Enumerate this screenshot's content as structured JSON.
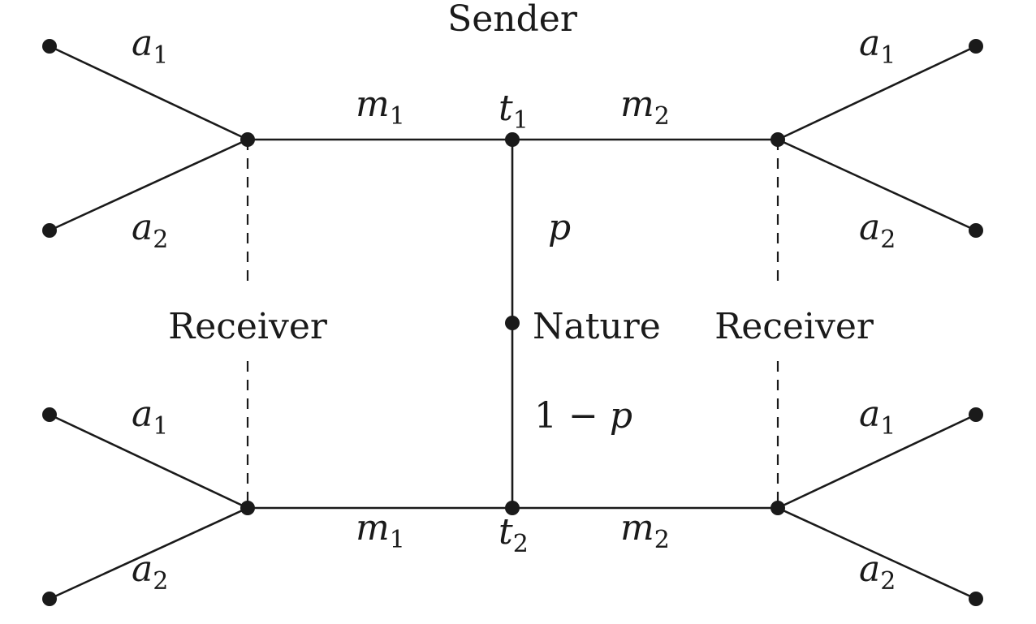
{
  "nodes": {
    "sender": "Sender",
    "nature": "Nature",
    "receiver_left": "Receiver",
    "receiver_right": "Receiver"
  },
  "types": {
    "t1": {
      "base": "t",
      "sub": "1"
    },
    "t2": {
      "base": "t",
      "sub": "2"
    }
  },
  "probabilities": {
    "upper": {
      "var": "p"
    },
    "lower": {
      "prefix": "1 − ",
      "var": "p"
    }
  },
  "messages": {
    "m1": {
      "base": "m",
      "sub": "1"
    },
    "m2": {
      "base": "m",
      "sub": "2"
    }
  },
  "actions": {
    "a1": {
      "base": "a",
      "sub": "1"
    },
    "a2": {
      "base": "a",
      "sub": "2"
    }
  }
}
